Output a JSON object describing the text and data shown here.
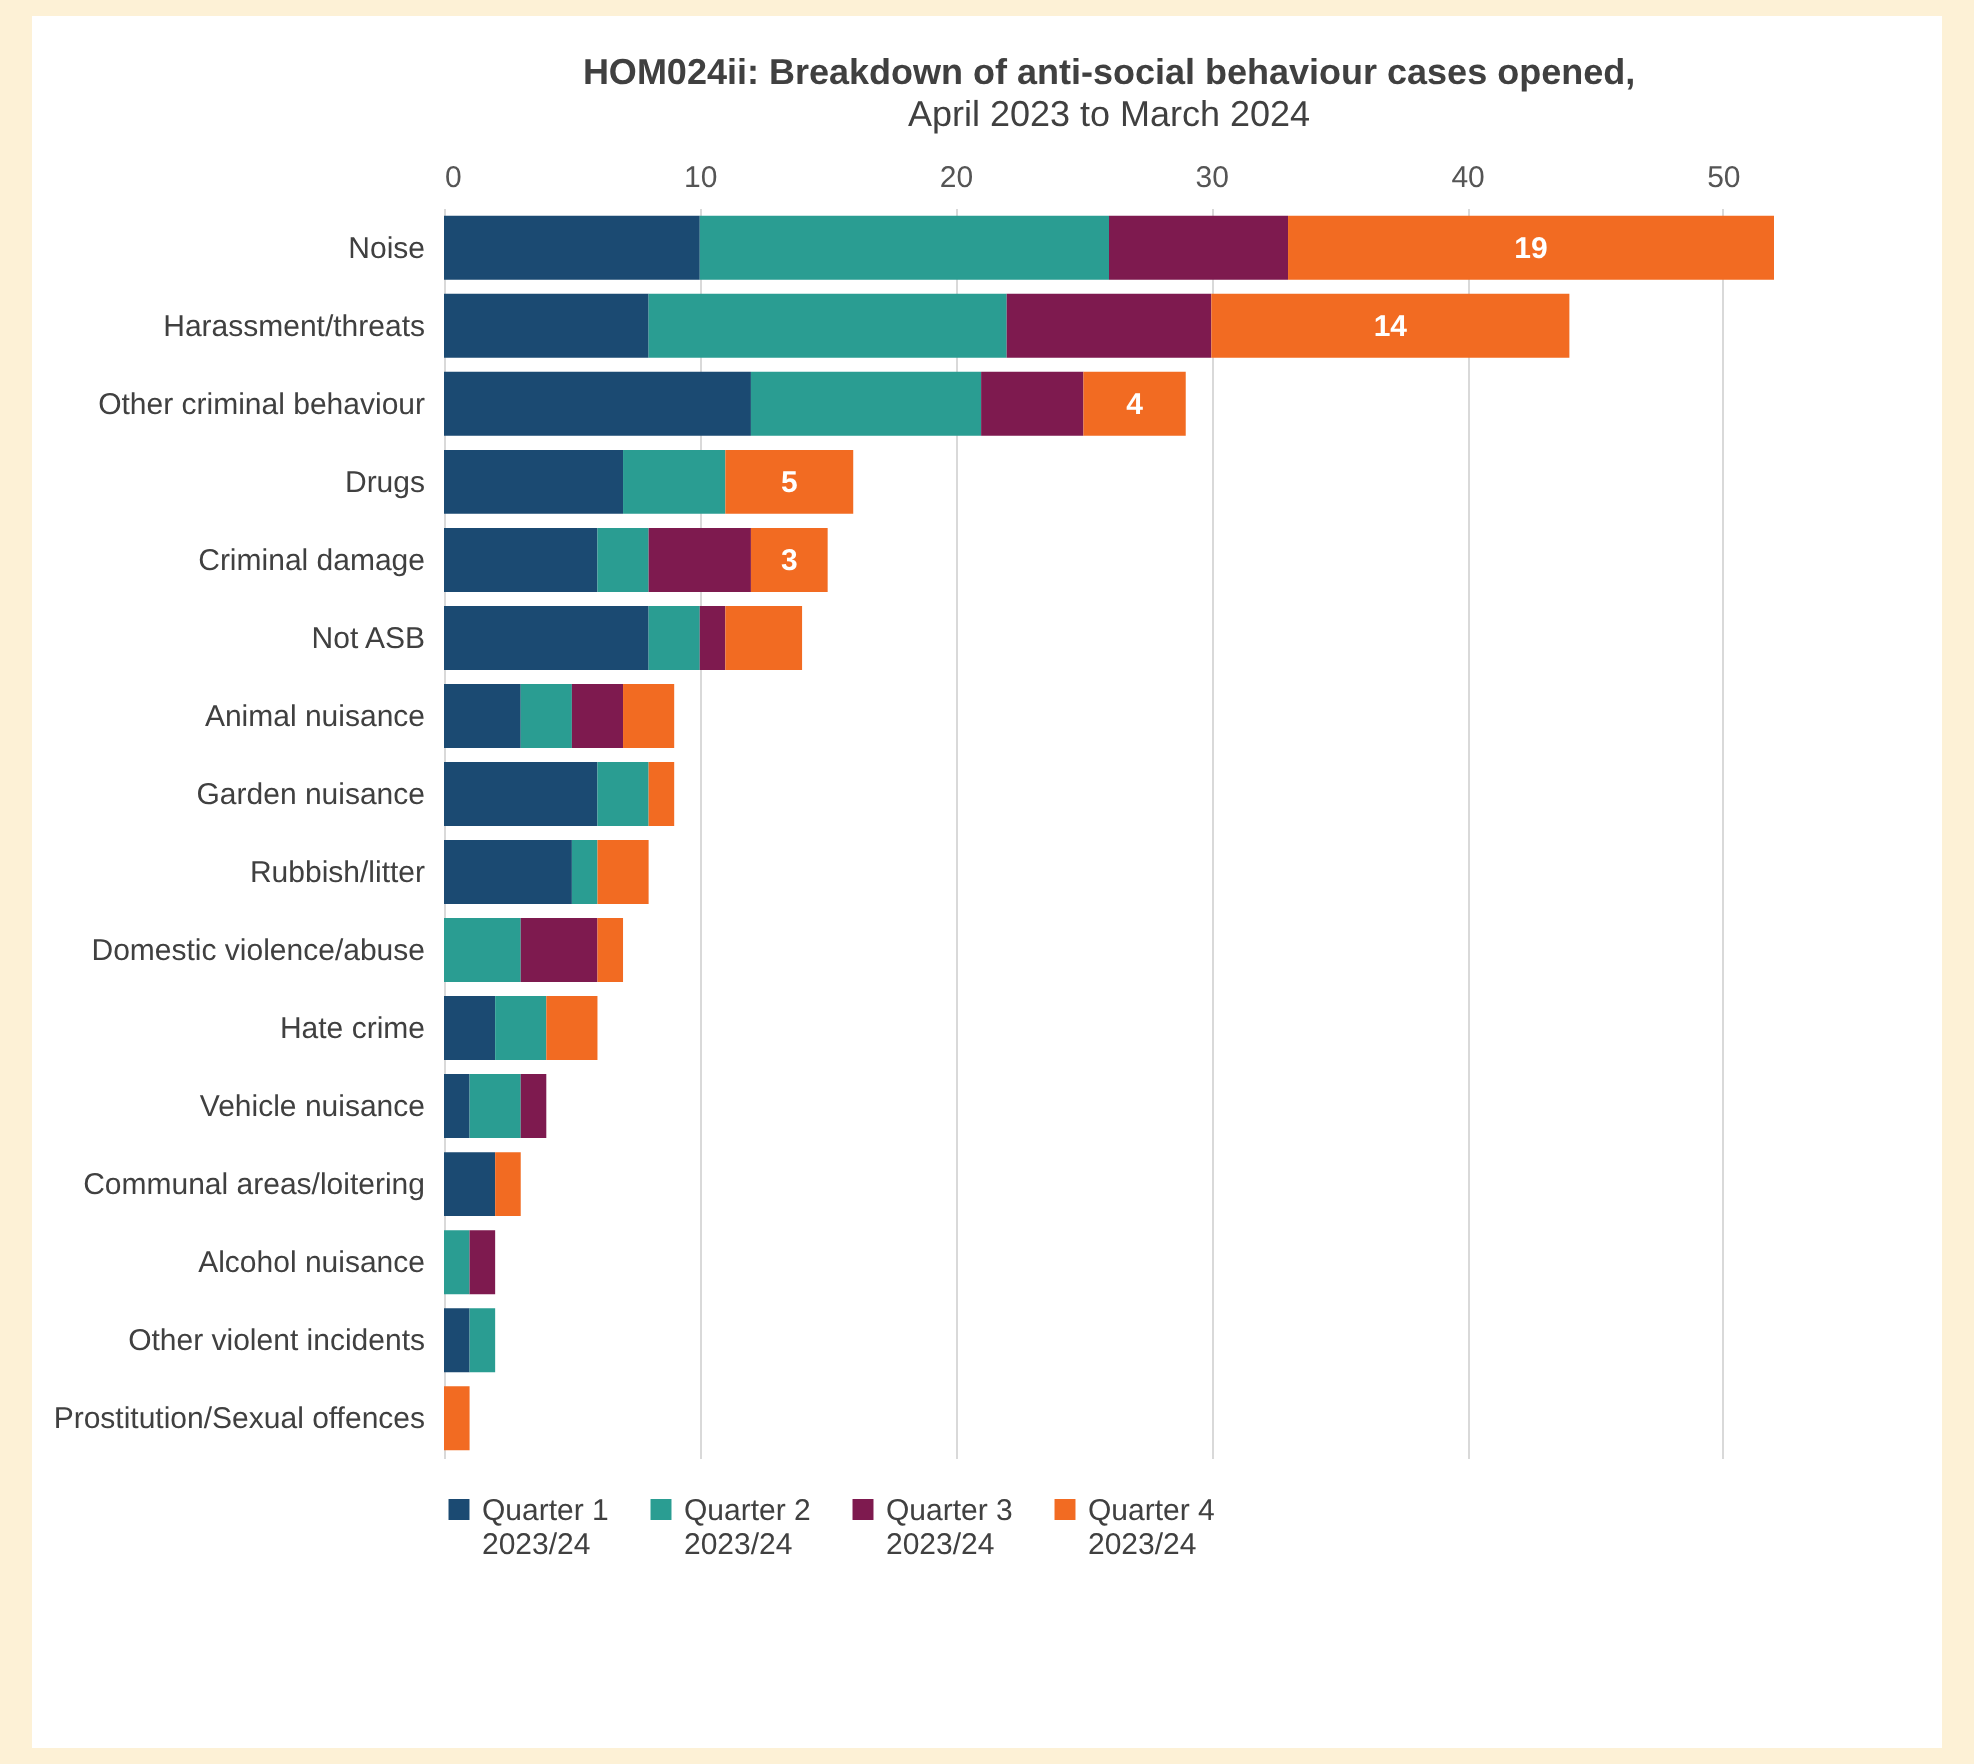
{
  "chart_data": {
    "type": "bar",
    "orientation": "horizontal",
    "stacked": true,
    "title": "HOM024ii: Breakdown of anti-social behaviour cases opened,",
    "subtitle": "April 2023 to March 2024",
    "categories": [
      "Noise",
      "Harassment/threats",
      "Other criminal behaviour",
      "Drugs",
      "Criminal damage",
      "Not ASB",
      "Animal nuisance",
      "Garden nuisance",
      "Rubbish/litter",
      "Domestic violence/abuse",
      "Hate crime",
      "Vehicle nuisance",
      "Communal areas/loitering",
      "Alcohol nuisance",
      "Other violent incidents",
      "Prostitution/Sexual offences"
    ],
    "series": [
      {
        "name": "Quarter 1 2023/24",
        "color": "#1b4a72",
        "values": [
          10,
          8,
          12,
          7,
          6,
          8,
          3,
          6,
          5,
          0,
          2,
          1,
          2,
          0,
          1,
          0
        ]
      },
      {
        "name": "Quarter 2 2023/24",
        "color": "#2a9d92",
        "values": [
          16,
          14,
          9,
          4,
          2,
          2,
          2,
          2,
          1,
          3,
          2,
          2,
          0,
          1,
          1,
          0
        ]
      },
      {
        "name": "Quarter 3 2023/24",
        "color": "#7e1a4f",
        "values": [
          7,
          8,
          4,
          0,
          4,
          1,
          2,
          0,
          0,
          3,
          0,
          1,
          0,
          1,
          0,
          0
        ]
      },
      {
        "name": "Quarter 4 2023/24",
        "color": "#f26b22",
        "values": [
          19,
          14,
          4,
          5,
          3,
          3,
          2,
          1,
          2,
          1,
          2,
          0,
          1,
          0,
          0,
          1
        ],
        "value_labels": [
          "19",
          "14",
          "4",
          "5",
          "3",
          null,
          null,
          null,
          null,
          null,
          null,
          null,
          null,
          null,
          null,
          null
        ]
      }
    ],
    "xlim": [
      0,
      52
    ],
    "xticks": [
      0,
      10,
      20,
      30,
      40,
      50
    ],
    "grid": "x",
    "legend": "bottom"
  }
}
